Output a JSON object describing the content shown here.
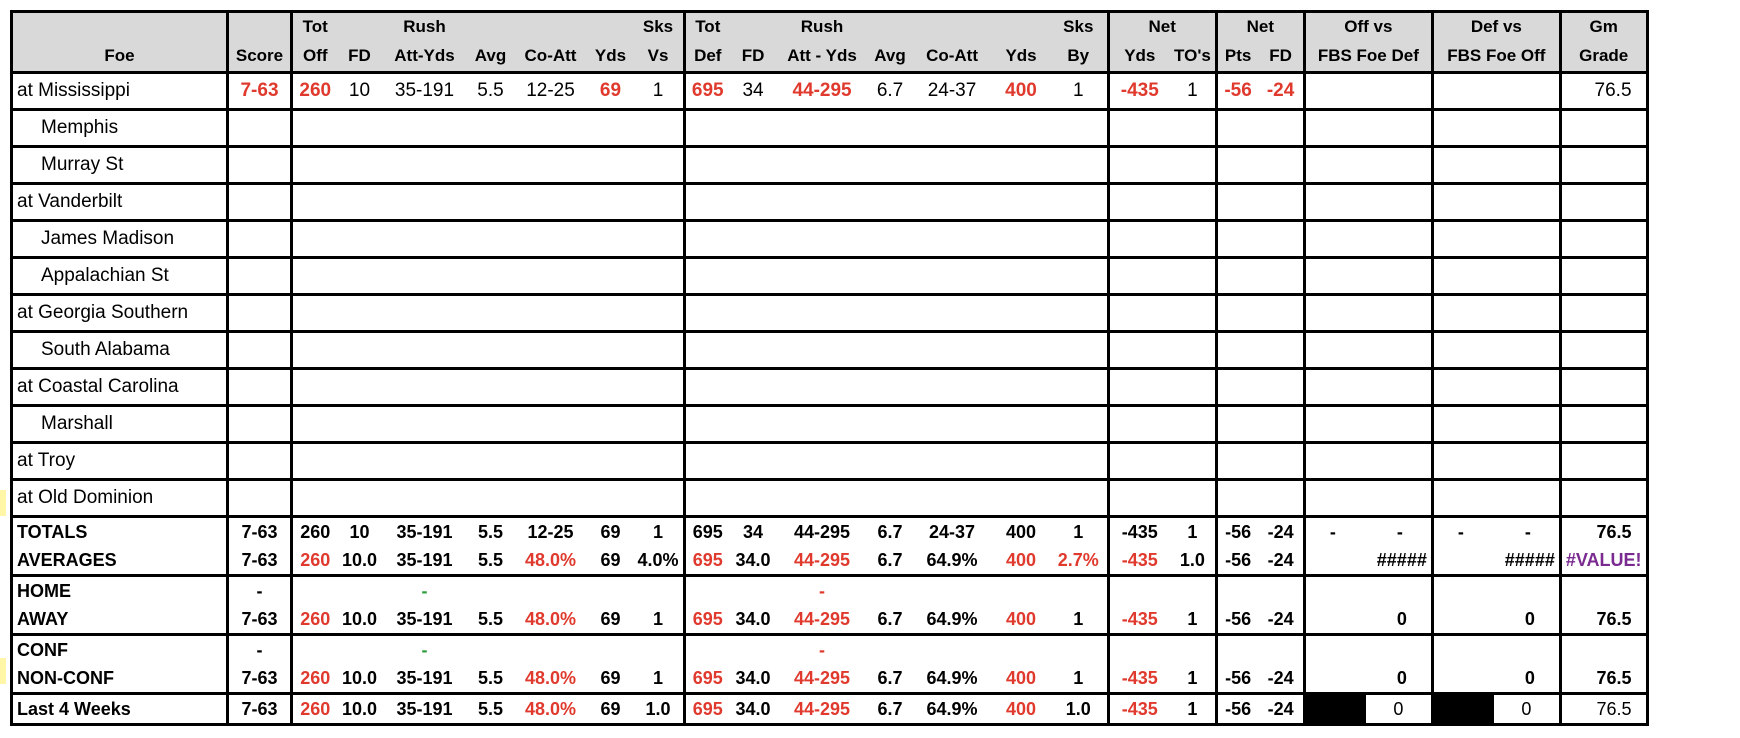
{
  "header": {
    "row1": [
      "",
      "",
      "Tot",
      "",
      "Rush",
      "",
      "",
      "",
      "Sks",
      "Tot",
      "",
      "Rush",
      "",
      "",
      "",
      "Sks",
      "Net",
      "",
      "Net",
      "",
      "Off vs",
      "Def vs",
      "Gm"
    ],
    "row2": [
      "Foe",
      "Score",
      "Off",
      "FD",
      "Att-Yds",
      "Avg",
      "Co-Att",
      "Yds",
      "Vs",
      "Def",
      "FD",
      "Att - Yds",
      "Avg",
      "Co-Att",
      "Yds",
      "By",
      "Yds",
      "TO's",
      "Pts",
      "FD",
      "FBS Foe Def",
      "FBS Foe Off",
      "Grade"
    ]
  },
  "games": [
    {
      "foe": "at Mississippi",
      "score": "7-63",
      "tot_off": "260",
      "fd": "10",
      "rush": "35-191",
      "avg": "5.5",
      "co_att": "12-25",
      "yds": "69",
      "sks_vs": "1",
      "tot_def": "695",
      "dfd": "34",
      "drush": "44-295",
      "davg": "6.7",
      "dco_att": "24-37",
      "dyds": "400",
      "sks_by": "1",
      "net_yds": "-435",
      "tos": "1",
      "net_pts": "-56",
      "net_fd": "-24",
      "grade": "76.5"
    },
    {
      "foe": "Memphis"
    },
    {
      "foe": "Murray St"
    },
    {
      "foe": "at Vanderbilt"
    },
    {
      "foe": "James Madison"
    },
    {
      "foe": "Appalachian St"
    },
    {
      "foe": "at Georgia Southern"
    },
    {
      "foe": "South Alabama"
    },
    {
      "foe": "at Coastal Carolina"
    },
    {
      "foe": "Marshall"
    },
    {
      "foe": "at Troy"
    },
    {
      "foe": "at Old Dominion"
    }
  ],
  "totals": {
    "label": "TOTALS",
    "score": "7-63",
    "tot_off": "260",
    "fd": "10",
    "rush": "35-191",
    "avg": "5.5",
    "co_att": "12-25",
    "yds": "69",
    "sks_vs": "1",
    "tot_def": "695",
    "dfd": "34",
    "drush": "44-295",
    "davg": "6.7",
    "dco_att": "24-37",
    "dyds": "400",
    "sks_by": "1",
    "net_yds": "-435",
    "tos": "1",
    "net_pts": "-56",
    "net_fd": "-24",
    "off_a": "-",
    "off_b": "-",
    "def_a": "-",
    "def_b": "-",
    "grade": "76.5"
  },
  "averages": {
    "label": "AVERAGES",
    "score": "7-63",
    "tot_off": "260",
    "fd": "10.0",
    "rush": "35-191",
    "avg": "5.5",
    "co_att": "48.0%",
    "yds": "69",
    "sks_vs": "4.0%",
    "tot_def": "695",
    "dfd": "34.0",
    "drush": "44-295",
    "davg": "6.7",
    "dco_att": "64.9%",
    "dyds": "400",
    "sks_by": "2.7%",
    "net_yds": "-435",
    "tos": "1.0",
    "net_pts": "-56",
    "net_fd": "-24",
    "off_vs": "#####",
    "def_vs": "#####",
    "grade": "#VALUE!"
  },
  "home": {
    "label": "HOME",
    "score": "-",
    "rush": "-",
    "drush": "-"
  },
  "away": {
    "label": "AWAY",
    "score": "7-63",
    "tot_off": "260",
    "fd": "10.0",
    "rush": "35-191",
    "avg": "5.5",
    "co_att": "48.0%",
    "yds": "69",
    "sks_vs": "1",
    "tot_def": "695",
    "dfd": "34.0",
    "drush": "44-295",
    "davg": "6.7",
    "dco_att": "64.9%",
    "dyds": "400",
    "sks_by": "1",
    "net_yds": "-435",
    "tos": "1",
    "net_pts": "-56",
    "net_fd": "-24",
    "off_vs": "0",
    "def_vs": "0",
    "grade": "76.5"
  },
  "conf": {
    "label": "CONF",
    "score": "-",
    "rush": "-",
    "drush": "-"
  },
  "nonconf": {
    "label": "NON-CONF",
    "score": "7-63",
    "tot_off": "260",
    "fd": "10.0",
    "rush": "35-191",
    "avg": "5.5",
    "co_att": "48.0%",
    "yds": "69",
    "sks_vs": "1",
    "tot_def": "695",
    "dfd": "34.0",
    "drush": "44-295",
    "davg": "6.7",
    "dco_att": "64.9%",
    "dyds": "400",
    "sks_by": "1",
    "net_yds": "-435",
    "tos": "1",
    "net_pts": "-56",
    "net_fd": "-24",
    "off_vs": "0",
    "def_vs": "0",
    "grade": "76.5"
  },
  "last4": {
    "label": "Last 4 Weeks",
    "score": "7-63",
    "tot_off": "260",
    "fd": "10.0",
    "rush": "35-191",
    "avg": "5.5",
    "co_att": "48.0%",
    "yds": "69",
    "sks_vs": "1.0",
    "tot_def": "695",
    "dfd": "34.0",
    "drush": "44-295",
    "davg": "6.7",
    "dco_att": "64.9%",
    "dyds": "400",
    "sks_by": "1.0",
    "net_yds": "-435",
    "tos": "1",
    "net_pts": "-56",
    "net_fd": "-24",
    "off_vs": "0",
    "def_vs": "0",
    "grade": "76.5"
  },
  "colors": {
    "header_bg": "#d9d9d9",
    "negative_red": "#e03a2e",
    "green": "#2e9e3e",
    "error_purple": "#7a2a90"
  }
}
